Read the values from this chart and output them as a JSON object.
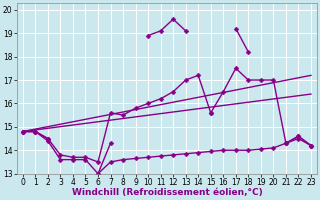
{
  "xlabel": "Windchill (Refroidissement éolien,°C)",
  "background_color": "#cce8ef",
  "line_color": "#880088",
  "grid_color": "#ffffff",
  "xlim": [
    -0.5,
    23.5
  ],
  "ylim": [
    13,
    20.3
  ],
  "xticks": [
    0,
    1,
    2,
    3,
    4,
    5,
    6,
    7,
    8,
    9,
    10,
    11,
    12,
    13,
    14,
    15,
    16,
    17,
    18,
    19,
    20,
    21,
    22,
    23
  ],
  "yticks": [
    13,
    14,
    15,
    16,
    17,
    18,
    19,
    20
  ],
  "series_upper": {
    "x": [
      0,
      1,
      2,
      3,
      4,
      5,
      6,
      7,
      8,
      9,
      10,
      11,
      12,
      13,
      14,
      15,
      16,
      17,
      18,
      19,
      20,
      21,
      22,
      23
    ],
    "y": [
      14.8,
      14.8,
      14.5,
      null,
      null,
      null,
      13.0,
      14.3,
      null,
      null,
      18.9,
      19.1,
      19.6,
      19.1,
      null,
      15.6,
      null,
      19.2,
      18.2,
      null,
      null,
      14.3,
      14.6,
      14.2
    ]
  },
  "series_middle": {
    "x": [
      0,
      1,
      2,
      3,
      4,
      5,
      6,
      7,
      8,
      9,
      10,
      11,
      12,
      13,
      14,
      15,
      16,
      17,
      18,
      19,
      20,
      21,
      22,
      23
    ],
    "y": [
      14.8,
      14.8,
      14.5,
      13.8,
      13.7,
      13.7,
      13.5,
      15.6,
      15.5,
      15.8,
      16.0,
      16.2,
      16.5,
      17.0,
      17.2,
      15.6,
      16.5,
      17.5,
      17.0,
      17.0,
      17.0,
      14.3,
      14.6,
      14.2
    ]
  },
  "series_lin1": {
    "x": [
      0,
      23
    ],
    "y": [
      14.8,
      17.2
    ]
  },
  "series_lin2": {
    "x": [
      0,
      23
    ],
    "y": [
      14.8,
      16.4
    ]
  },
  "series_bottom": {
    "x": [
      0,
      1,
      2,
      3,
      4,
      5,
      6,
      7,
      8,
      9,
      10,
      11,
      12,
      13,
      14,
      15,
      16,
      17,
      18,
      19,
      20,
      21,
      22,
      23
    ],
    "y": [
      14.8,
      14.8,
      14.4,
      13.6,
      13.6,
      13.6,
      13.0,
      13.5,
      13.6,
      13.65,
      13.7,
      13.75,
      13.8,
      13.85,
      13.9,
      13.95,
      14.0,
      14.0,
      14.0,
      14.05,
      14.1,
      14.3,
      14.5,
      14.2
    ]
  },
  "marker": "D",
  "markersize": 2.5,
  "linewidth": 1.0,
  "xlabel_fontsize": 6.5,
  "tick_fontsize": 5.5
}
